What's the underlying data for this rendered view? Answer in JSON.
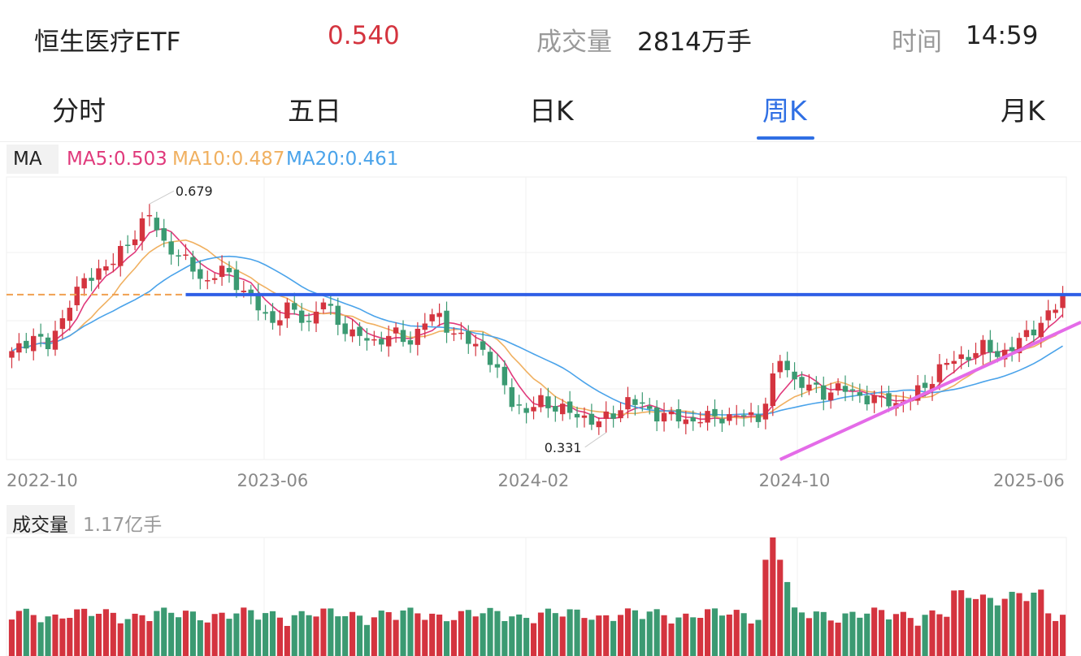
{
  "header": {
    "name": "恒生医疗ETF",
    "price": "0.540",
    "volume_label": "成交量",
    "volume_value": "2814万手",
    "time_label": "时间",
    "time_value": "14:59"
  },
  "tabs": [
    {
      "label": "分时",
      "active": false
    },
    {
      "label": "五日",
      "active": false
    },
    {
      "label": "日K",
      "active": false
    },
    {
      "label": "周K",
      "active": true
    },
    {
      "label": "月K",
      "active": false
    }
  ],
  "ma_legend": {
    "label": "MA",
    "ma5": "MA5:0.503",
    "ma10": "MA10:0.487",
    "ma20": "MA20:0.461"
  },
  "volume_legend": {
    "label": "成交量",
    "max": "1.17亿手"
  },
  "colors": {
    "up": "#d4343f",
    "down": "#3b9a72",
    "ma5": "#e0397b",
    "ma10": "#f0b060",
    "ma20": "#4aa3ea",
    "resistance_line": "#2f5fe6",
    "support_line": "#e46be8",
    "prev_close_line": "#f0a050",
    "accent": "#2f6fe4"
  },
  "chart_data": {
    "type": "candlestick",
    "x_ticks": [
      "2022-10",
      "2023-06",
      "2024-02",
      "2024-10",
      "2025-06"
    ],
    "x_tick_positions": [
      0,
      36,
      72,
      108,
      144
    ],
    "ylim": [
      0.29,
      0.72
    ],
    "annotations": [
      {
        "text": "0.679",
        "value": 0.679,
        "index": 19
      },
      {
        "text": "0.331",
        "value": 0.331,
        "index": 82
      }
    ],
    "horizontal_lines": [
      {
        "name": "resistance",
        "value": 0.541,
        "from_index": 24
      },
      {
        "name": "prev-close",
        "value": 0.541,
        "from_index": 0,
        "to_index": 24,
        "dashed": true
      }
    ],
    "trend_line": {
      "from": [
        106,
        0.29
      ],
      "to": [
        146,
        0.499
      ]
    },
    "volume_ylim": [
      0,
      1.17
    ],
    "volume_unit": "亿手"
  }
}
